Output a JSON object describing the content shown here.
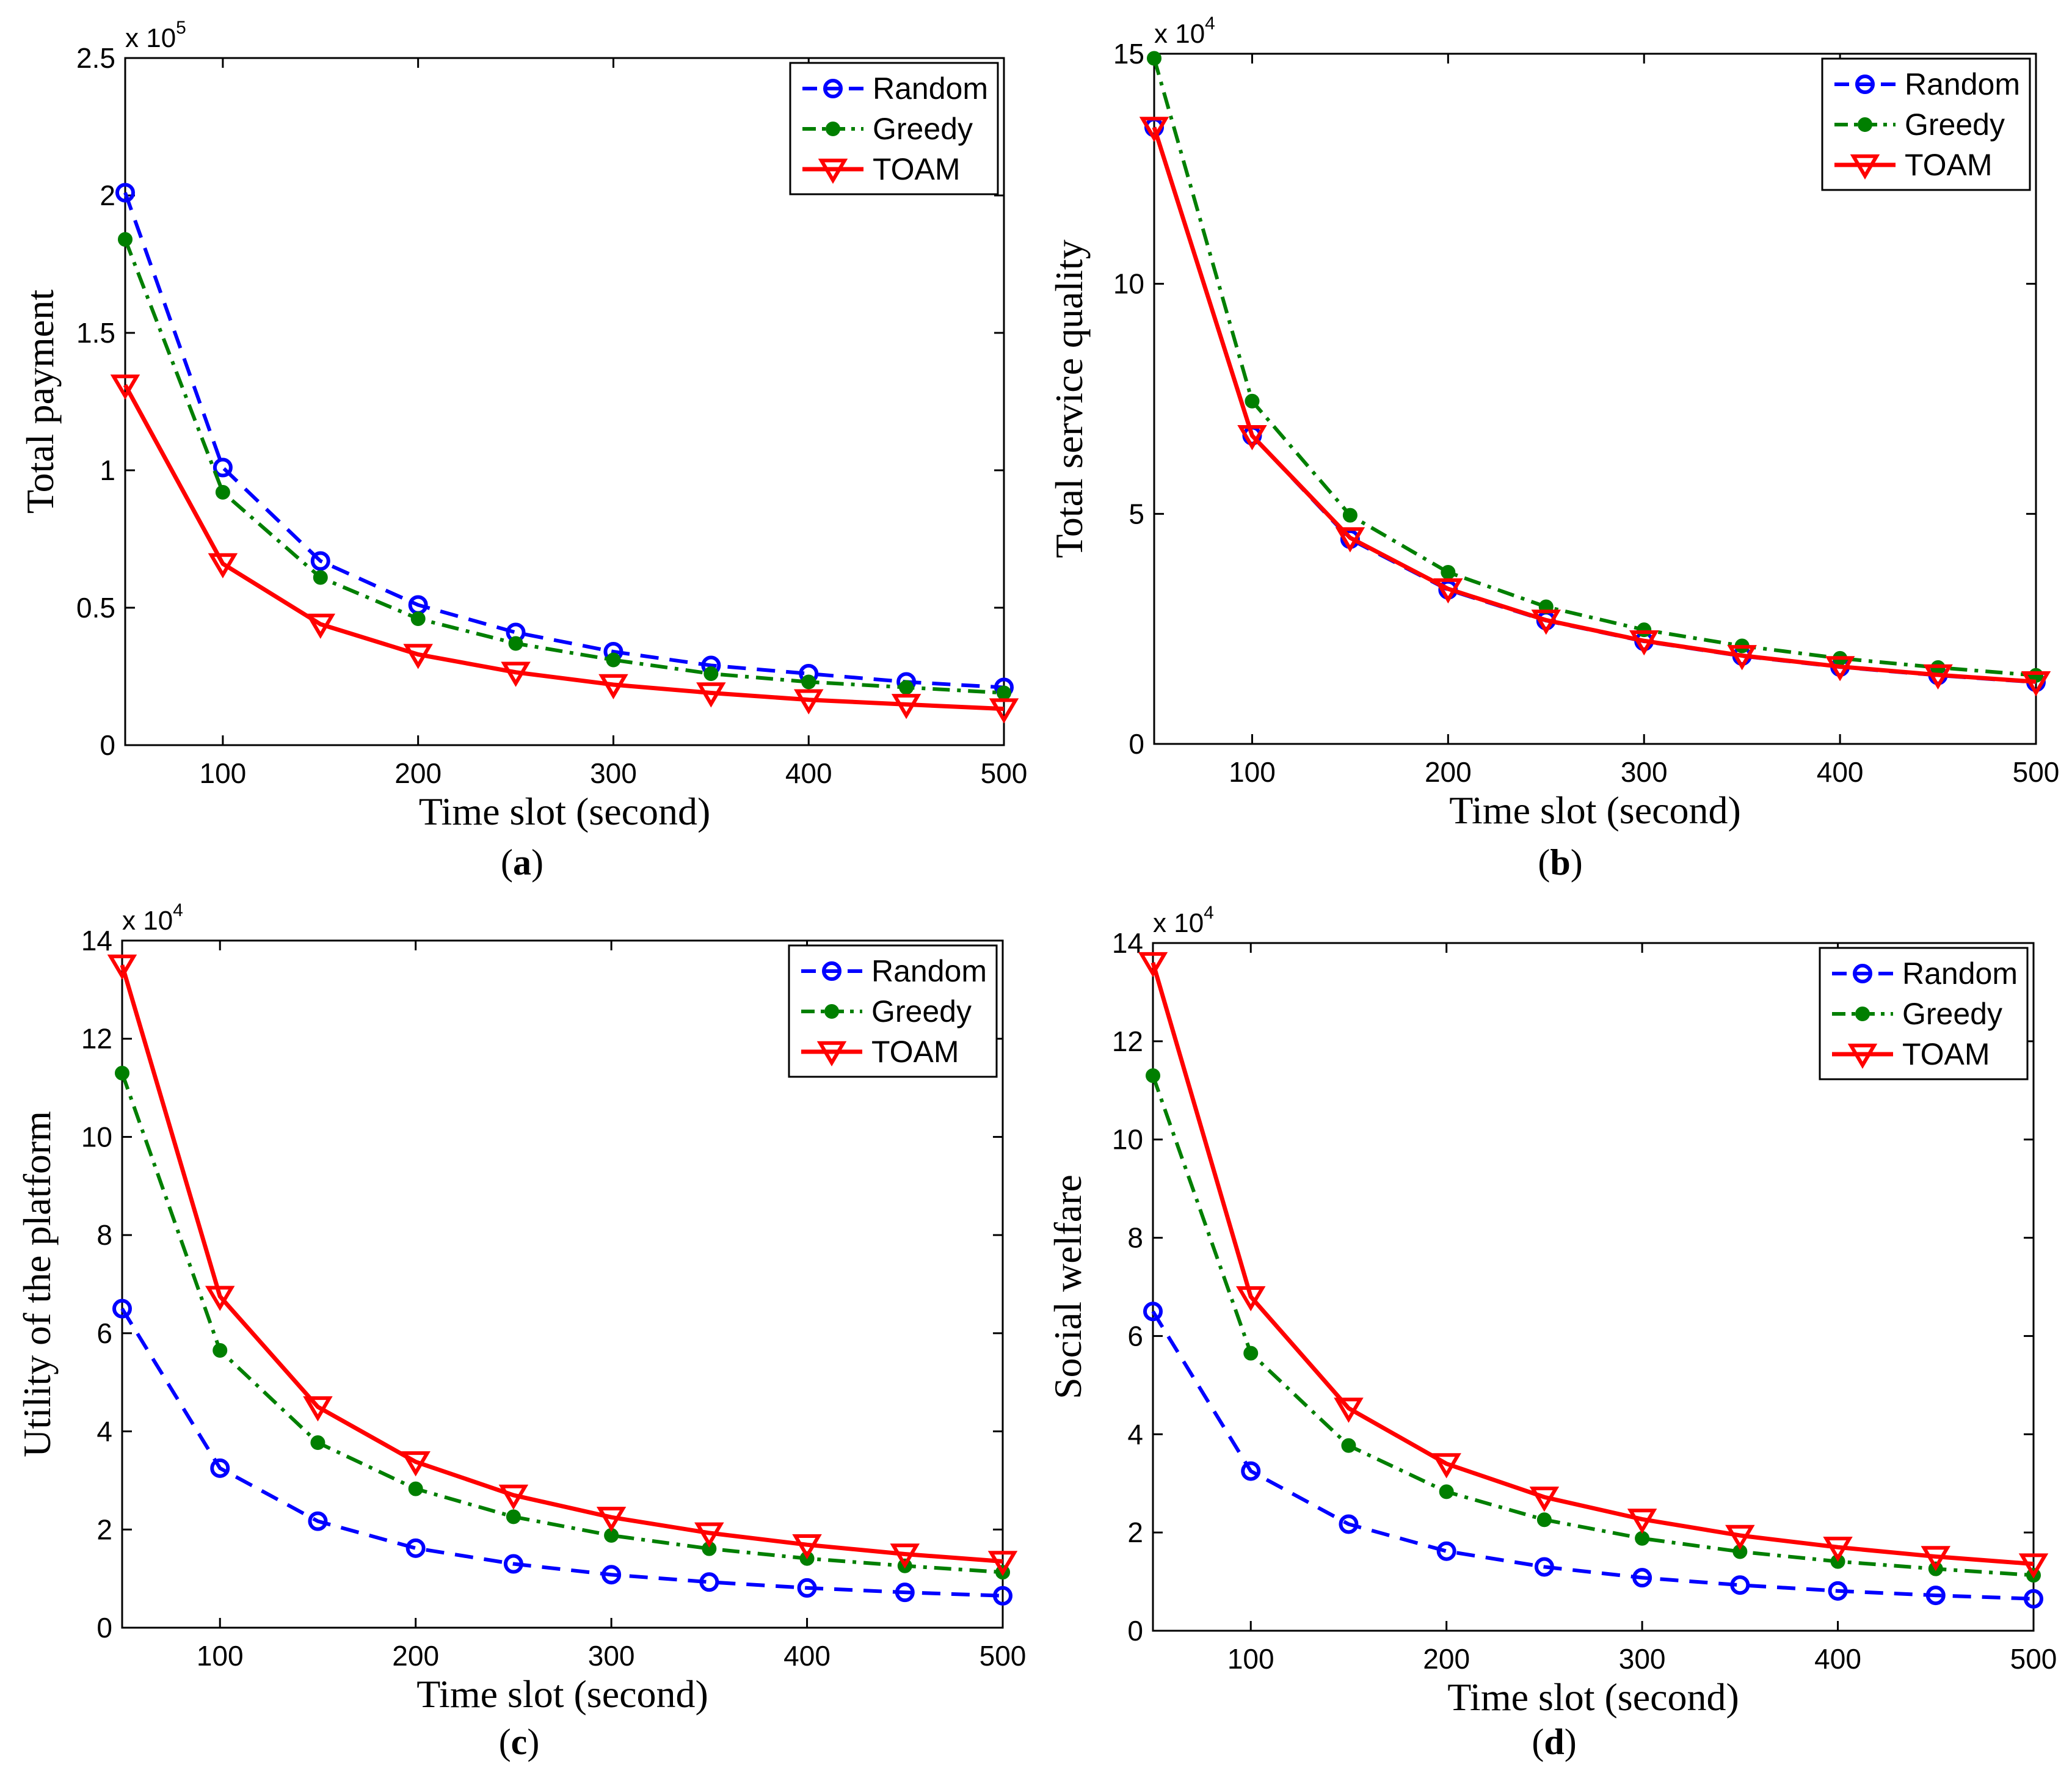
{
  "colors": {
    "random": "#0000ff",
    "greedy": "#007f00",
    "toam": "#ff0000",
    "axis": "#000000"
  },
  "chart_data": [
    {
      "type": "line",
      "caption": "a",
      "xlabel": "Time slot (second)",
      "ylabel": "Total payment",
      "scale_base": "x 10",
      "scale_exp": "5",
      "xlim": [
        50,
        500
      ],
      "ylim": [
        0,
        2.5
      ],
      "xticks": [
        100,
        200,
        300,
        400,
        500
      ],
      "yticks": [
        0,
        0.5,
        1,
        1.5,
        2,
        2.5
      ],
      "ytick_labels": [
        "0",
        "0.5",
        "1",
        "1.5",
        "2",
        "2.5"
      ],
      "legend_position": "top-right",
      "x": [
        50,
        100,
        150,
        200,
        250,
        300,
        350,
        400,
        450,
        500
      ],
      "series": [
        {
          "name": "Random",
          "values": [
            2.01,
            1.01,
            0.67,
            0.51,
            0.41,
            0.34,
            0.29,
            0.26,
            0.23,
            0.21
          ]
        },
        {
          "name": "Greedy",
          "values": [
            1.84,
            0.92,
            0.61,
            0.46,
            0.37,
            0.31,
            0.26,
            0.23,
            0.21,
            0.19
          ]
        },
        {
          "name": "TOAM",
          "values": [
            1.31,
            0.66,
            0.44,
            0.33,
            0.265,
            0.22,
            0.19,
            0.165,
            0.148,
            0.132
          ]
        }
      ]
    },
    {
      "type": "line",
      "caption": "b",
      "xlabel": "Time slot (second)",
      "ylabel": "Total service quality",
      "scale_base": "x 10",
      "scale_exp": "4",
      "xlim": [
        50,
        500
      ],
      "ylim": [
        0,
        15
      ],
      "xticks": [
        100,
        200,
        300,
        400,
        500
      ],
      "yticks": [
        0,
        5,
        10,
        15
      ],
      "ytick_labels": [
        "0",
        "5",
        "10",
        "15"
      ],
      "legend_position": "top-right",
      "x": [
        50,
        100,
        150,
        200,
        250,
        300,
        350,
        400,
        450,
        500
      ],
      "series": [
        {
          "name": "Random",
          "values": [
            13.4,
            6.7,
            4.45,
            3.35,
            2.68,
            2.23,
            1.91,
            1.67,
            1.49,
            1.34
          ]
        },
        {
          "name": "Greedy",
          "values": [
            14.9,
            7.45,
            4.97,
            3.73,
            2.98,
            2.48,
            2.13,
            1.86,
            1.66,
            1.49
          ]
        },
        {
          "name": "TOAM",
          "values": [
            13.4,
            6.7,
            4.48,
            3.37,
            2.69,
            2.24,
            1.92,
            1.68,
            1.5,
            1.35
          ]
        }
      ]
    },
    {
      "type": "line",
      "caption": "c",
      "xlabel": "Time slot (second)",
      "ylabel": "Utility of the platform",
      "scale_base": "x 10",
      "scale_exp": "4",
      "xlim": [
        50,
        500
      ],
      "ylim": [
        0,
        14
      ],
      "xticks": [
        100,
        200,
        300,
        400,
        500
      ],
      "yticks": [
        0,
        2,
        4,
        6,
        8,
        10,
        12,
        14
      ],
      "ytick_labels": [
        "0",
        "2",
        "4",
        "6",
        "8",
        "10",
        "12",
        "14"
      ],
      "legend_position": "top-right",
      "x": [
        50,
        100,
        150,
        200,
        250,
        300,
        350,
        400,
        450,
        500
      ],
      "series": [
        {
          "name": "Random",
          "values": [
            6.5,
            3.25,
            2.17,
            1.62,
            1.3,
            1.08,
            0.93,
            0.81,
            0.72,
            0.65
          ]
        },
        {
          "name": "Greedy",
          "values": [
            11.3,
            5.65,
            3.77,
            2.83,
            2.26,
            1.88,
            1.61,
            1.41,
            1.26,
            1.13
          ]
        },
        {
          "name": "TOAM",
          "values": [
            13.5,
            6.75,
            4.5,
            3.38,
            2.7,
            2.25,
            1.93,
            1.69,
            1.5,
            1.35
          ]
        }
      ]
    },
    {
      "type": "line",
      "caption": "d",
      "xlabel": "Time slot (second)",
      "ylabel": "Social welfare",
      "scale_base": "x 10",
      "scale_exp": "4",
      "xlim": [
        50,
        500
      ],
      "ylim": [
        0,
        14
      ],
      "xticks": [
        100,
        200,
        300,
        400,
        500
      ],
      "yticks": [
        0,
        2,
        4,
        6,
        8,
        10,
        12,
        14
      ],
      "ytick_labels": [
        "0",
        "2",
        "4",
        "6",
        "8",
        "10",
        "12",
        "14"
      ],
      "legend_position": "top-right",
      "x": [
        50,
        100,
        150,
        200,
        250,
        300,
        350,
        400,
        450,
        500
      ],
      "series": [
        {
          "name": "Random",
          "values": [
            6.5,
            3.25,
            2.17,
            1.62,
            1.3,
            1.08,
            0.93,
            0.81,
            0.72,
            0.65
          ]
        },
        {
          "name": "Greedy",
          "values": [
            11.3,
            5.65,
            3.77,
            2.83,
            2.26,
            1.88,
            1.61,
            1.41,
            1.26,
            1.13
          ]
        },
        {
          "name": "TOAM",
          "values": [
            13.6,
            6.8,
            4.53,
            3.4,
            2.72,
            2.27,
            1.94,
            1.7,
            1.51,
            1.36
          ]
        }
      ]
    }
  ]
}
